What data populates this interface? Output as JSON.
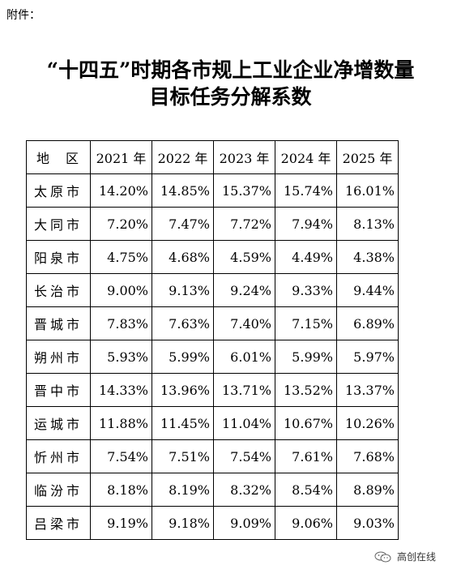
{
  "attachment_label": "附件：",
  "title_line1": "“十四五”时期各市规上工业企业净增数量",
  "title_line2": "目标任务分解系数",
  "table": {
    "headers": [
      "地　区",
      "2021 年",
      "2022 年",
      "2023 年",
      "2024 年",
      "2025 年"
    ],
    "rows": [
      {
        "region": "太原市",
        "values": [
          "14.20%",
          "14.85%",
          "15.37%",
          "15.74%",
          "16.01%"
        ]
      },
      {
        "region": "大同市",
        "values": [
          "7.20%",
          "7.47%",
          "7.72%",
          "7.94%",
          "8.13%"
        ]
      },
      {
        "region": "阳泉市",
        "values": [
          "4.75%",
          "4.68%",
          "4.59%",
          "4.49%",
          "4.38%"
        ]
      },
      {
        "region": "长治市",
        "values": [
          "9.00%",
          "9.13%",
          "9.24%",
          "9.33%",
          "9.44%"
        ]
      },
      {
        "region": "晋城市",
        "values": [
          "7.83%",
          "7.63%",
          "7.40%",
          "7.15%",
          "6.89%"
        ]
      },
      {
        "region": "朔州市",
        "values": [
          "5.93%",
          "5.99%",
          "6.01%",
          "5.99%",
          "5.97%"
        ]
      },
      {
        "region": "晋中市",
        "values": [
          "14.33%",
          "13.96%",
          "13.71%",
          "13.52%",
          "13.37%"
        ]
      },
      {
        "region": "运城市",
        "values": [
          "11.88%",
          "11.45%",
          "11.04%",
          "10.67%",
          "10.26%"
        ]
      },
      {
        "region": "忻州市",
        "values": [
          "7.54%",
          "7.51%",
          "7.54%",
          "7.61%",
          "7.68%"
        ]
      },
      {
        "region": "临汾市",
        "values": [
          "8.18%",
          "8.19%",
          "8.32%",
          "8.54%",
          "8.89%"
        ]
      },
      {
        "region": "吕梁市",
        "values": [
          "9.19%",
          "9.18%",
          "9.09%",
          "9.06%",
          "9.03%"
        ]
      }
    ]
  },
  "watermark": {
    "text": "高创在线",
    "icon": "wechat-icon"
  }
}
